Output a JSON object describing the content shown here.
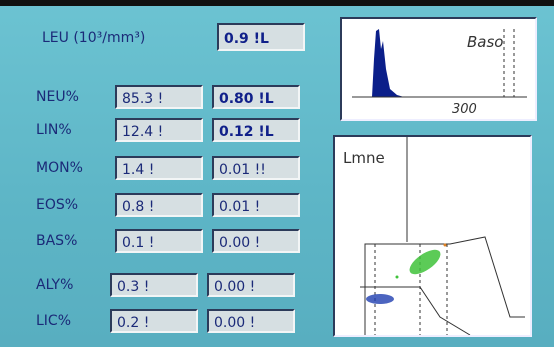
{
  "leu": {
    "label": "LEU (10³/mm³)",
    "value": "0.9 !L"
  },
  "rows": [
    {
      "label": "NEU%",
      "percent": "85.3 !",
      "absolute": "0.80 !L"
    },
    {
      "label": "LIN%",
      "percent": "12.4 !",
      "absolute": "0.12 !L"
    },
    {
      "label": "MON%",
      "percent": "1.4 !",
      "absolute": "0.01 !!"
    },
    {
      "label": "EOS%",
      "percent": "0.8 !",
      "absolute": "0.01 !"
    },
    {
      "label": "BAS%",
      "percent": "0.1 !",
      "absolute": "0.00 !"
    },
    {
      "label": "ALY%",
      "percent": "0.3 !",
      "absolute": "0.00 !"
    },
    {
      "label": "LIC%",
      "percent": "0.2 !",
      "absolute": "0.00 !"
    }
  ],
  "histogram": {
    "title": "Baso",
    "tick": "300"
  },
  "scatter": {
    "title": "Lmne"
  }
}
